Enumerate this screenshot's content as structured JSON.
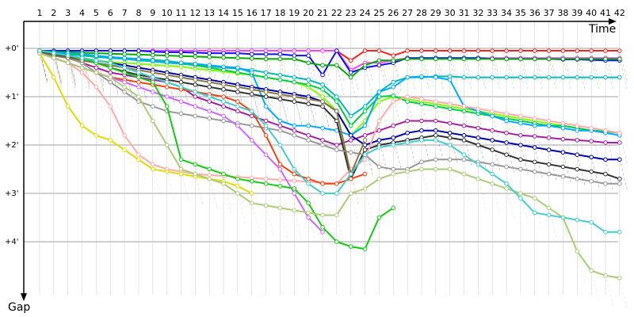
{
  "chart_data": {
    "type": "line",
    "xlabel": "Time",
    "ylabel": "Gap",
    "x_ticks": [
      "1",
      "2",
      "3",
      "4",
      "5",
      "6",
      "7",
      "8",
      "9",
      "10",
      "11",
      "12",
      "13",
      "14",
      "15",
      "16",
      "17",
      "18",
      "19",
      "20",
      "21",
      "22",
      "23",
      "24",
      "25",
      "26",
      "27",
      "28",
      "29",
      "30",
      "31",
      "32",
      "33",
      "34",
      "35",
      "36",
      "37",
      "38",
      "39",
      "40",
      "41",
      "42"
    ],
    "y_ticks": [
      "+0'",
      "+1'",
      "+2'",
      "+3'",
      "+4'"
    ],
    "ylim": [
      0,
      4.7
    ],
    "xlim": [
      1,
      42
    ],
    "grid": true,
    "series": [
      {
        "color": "#ff2020",
        "values": [
          0.05,
          0.05,
          0.05,
          0.05,
          0.05,
          0.05,
          0.05,
          0.05,
          0.05,
          0.05,
          0.05,
          0.05,
          0.05,
          0.05,
          0.05,
          0.05,
          0.05,
          0.05,
          0.05,
          0.05,
          0.05,
          0.05,
          0.25,
          0.05,
          0.05,
          0.15,
          0.05,
          0.05,
          0.05,
          0.05,
          0.05,
          0.05,
          0.05,
          0.05,
          0.05,
          0.05,
          0.05,
          0.05,
          0.05,
          0.05,
          0.05,
          0.05
        ]
      },
      {
        "color": "#ff44ff",
        "values": [
          0.05,
          0.05,
          0.05,
          0.05,
          0.05,
          0.05,
          0.05,
          0.05,
          0.05,
          0.05,
          0.05,
          0.05,
          0.05,
          0.05,
          0.05,
          0.05,
          0.05,
          0.05,
          0.05,
          0.05,
          0.05,
          0.05,
          0.45,
          0.3,
          0.3,
          0.25,
          0.2,
          0.2,
          0.2,
          0.2,
          0.2,
          0.2,
          0.2,
          0.2,
          0.2,
          0.2,
          0.2,
          0.2,
          0.2,
          0.2,
          0.2,
          0.2
        ]
      },
      {
        "color": "#1010ff",
        "values": [
          0.05,
          0.05,
          0.05,
          0.05,
          0.05,
          0.05,
          0.05,
          0.05,
          0.07,
          0.08,
          0.08,
          0.09,
          0.1,
          0.1,
          0.1,
          0.12,
          0.12,
          0.12,
          0.15,
          0.15,
          0.55,
          0.05,
          0.5,
          0.4,
          0.35,
          0.3,
          0.2,
          0.2,
          0.2,
          0.2,
          0.2,
          0.2,
          0.22,
          0.22,
          0.22,
          0.22,
          0.22,
          0.23,
          0.23,
          0.24,
          0.25,
          0.25
        ]
      },
      {
        "color": "#00aa00",
        "values": [
          0.05,
          0.07,
          0.08,
          0.09,
          0.1,
          0.11,
          0.12,
          0.13,
          0.14,
          0.15,
          0.16,
          0.17,
          0.18,
          0.19,
          0.2,
          0.21,
          0.22,
          0.22,
          0.22,
          0.3,
          0.35,
          0.35,
          0.6,
          0.35,
          0.25,
          0.25,
          0.22,
          0.22,
          0.22,
          0.22,
          0.22,
          0.22,
          0.22,
          0.22,
          0.22,
          0.22,
          0.22,
          0.22,
          0.22,
          0.22,
          0.22,
          0.22
        ]
      },
      {
        "color": "#00bbbb",
        "values": [
          0.08,
          0.1,
          0.12,
          0.15,
          0.18,
          0.2,
          0.22,
          0.25,
          0.27,
          0.3,
          0.32,
          0.35,
          0.37,
          0.4,
          0.42,
          0.45,
          0.5,
          0.55,
          0.6,
          0.65,
          0.75,
          1.0,
          1.4,
          1.2,
          0.9,
          0.7,
          0.6,
          0.6,
          0.58,
          0.58,
          0.6,
          0.6,
          0.6,
          0.6,
          0.6,
          0.6,
          0.6,
          0.6,
          0.6,
          0.6,
          0.6,
          0.6
        ]
      },
      {
        "color": "#80ff00",
        "values": [
          0.05,
          0.12,
          0.18,
          0.22,
          0.25,
          0.28,
          0.3,
          0.32,
          0.34,
          0.36,
          0.38,
          0.42,
          0.45,
          0.48,
          0.52,
          0.55,
          0.6,
          0.65,
          0.7,
          0.8,
          1.0,
          1.3,
          1.8,
          1.5,
          1.1,
          1.0,
          1.05,
          1.1,
          1.15,
          1.2,
          1.25,
          1.3,
          1.35,
          1.4,
          1.45,
          1.5,
          1.55,
          1.6,
          1.65,
          1.7,
          1.7,
          1.75
        ]
      },
      {
        "color": "#00cc44",
        "values": [
          0.05,
          0.1,
          0.12,
          0.14,
          0.16,
          0.18,
          0.2,
          0.22,
          0.24,
          0.26,
          0.3,
          0.35,
          0.4,
          0.45,
          0.5,
          0.55,
          0.6,
          0.65,
          0.7,
          0.75,
          0.85,
          1.1,
          1.6,
          1.3,
          1.0,
          0.98,
          1.1,
          1.15,
          1.2,
          1.25,
          1.3,
          1.35,
          1.4,
          1.45,
          1.5,
          1.55,
          1.6,
          1.6,
          1.65,
          1.7,
          1.72,
          1.75
        ]
      },
      {
        "color": "#00aaff",
        "values": [
          0.05,
          0.08,
          0.1,
          0.12,
          0.15,
          0.18,
          0.2,
          0.22,
          0.25,
          0.28,
          0.3,
          0.32,
          0.35,
          0.38,
          0.4,
          0.5,
          1.2,
          1.5,
          1.6,
          1.6,
          1.65,
          1.7,
          1.8,
          1.6,
          0.9,
          0.8,
          0.6,
          0.58,
          0.6,
          0.65,
          1.2,
          1.3,
          1.4,
          1.5,
          1.55,
          1.6,
          1.6,
          1.65,
          1.7,
          1.7,
          1.75,
          1.8
        ]
      },
      {
        "color": "#a020a0",
        "values": [
          0.05,
          0.15,
          0.2,
          0.3,
          0.4,
          0.5,
          0.55,
          0.6,
          0.65,
          0.7,
          0.8,
          1.0,
          1.1,
          1.2,
          1.3,
          1.4,
          1.5,
          1.6,
          1.7,
          1.8,
          1.9,
          2.0,
          1.9,
          1.8,
          1.7,
          1.6,
          1.5,
          1.5,
          1.5,
          1.55,
          1.6,
          1.65,
          1.7,
          1.75,
          1.8,
          1.82,
          1.85,
          1.88,
          1.9,
          1.92,
          1.95,
          1.95
        ]
      },
      {
        "color": "#0000aa",
        "values": [
          0.05,
          0.1,
          0.15,
          0.2,
          0.25,
          0.3,
          0.35,
          0.4,
          0.45,
          0.5,
          0.55,
          0.6,
          0.65,
          0.7,
          0.75,
          0.8,
          0.85,
          0.9,
          0.95,
          1.0,
          1.1,
          1.3,
          1.8,
          2.0,
          1.9,
          1.85,
          1.75,
          1.7,
          1.7,
          1.75,
          1.8,
          1.85,
          1.9,
          1.95,
          2.0,
          2.05,
          2.1,
          2.15,
          2.2,
          2.25,
          2.3,
          2.3
        ]
      },
      {
        "color": "#333333",
        "values": [
          0.08,
          0.12,
          0.18,
          0.25,
          0.3,
          0.4,
          0.48,
          0.55,
          0.6,
          0.65,
          0.7,
          0.75,
          0.8,
          0.85,
          0.9,
          0.95,
          1.0,
          1.05,
          1.1,
          1.15,
          1.2,
          1.5,
          2.7,
          2.1,
          2.0,
          1.95,
          1.9,
          1.85,
          1.8,
          1.85,
          1.9,
          2.0,
          2.1,
          2.2,
          2.3,
          2.35,
          2.4,
          2.45,
          2.5,
          2.55,
          2.6,
          2.7
        ]
      },
      {
        "color": "#999999",
        "values": [
          0.1,
          0.15,
          0.2,
          0.3,
          0.5,
          0.7,
          0.9,
          1.1,
          1.2,
          1.3,
          1.35,
          1.4,
          1.45,
          1.5,
          1.55,
          1.6,
          1.65,
          1.7,
          1.8,
          1.9,
          2.0,
          2.1,
          2.15,
          2.2,
          2.45,
          2.5,
          2.5,
          2.35,
          2.3,
          2.3,
          2.3,
          2.35,
          2.4,
          2.45,
          2.5,
          2.55,
          2.6,
          2.65,
          2.7,
          2.75,
          2.8,
          2.8
        ]
      },
      {
        "color": "#ffaaaa",
        "values": [
          0.1,
          0.2,
          0.3,
          0.5,
          0.8,
          1.2,
          1.8,
          2.2,
          2.4,
          2.5,
          2.55,
          2.6,
          2.62,
          2.64,
          2.66,
          2.68,
          2.7,
          2.72,
          2.74,
          2.76,
          2.78,
          2.8,
          2.5,
          2.3,
          1.5,
          1.1,
          1.0,
          1.05,
          1.1,
          1.15,
          1.2,
          1.25,
          1.3,
          1.35,
          1.4,
          1.45,
          1.5,
          1.55,
          1.6,
          1.65,
          1.7,
          1.75
        ]
      },
      {
        "color": "#dddd00",
        "values": [
          0.1,
          0.6,
          1.2,
          1.6,
          1.8,
          1.9,
          2.1,
          2.3,
          2.5,
          2.55,
          2.6,
          2.65,
          2.7,
          2.75,
          2.85,
          3.0
        ]
      },
      {
        "color": "#ee4411",
        "values": [
          0.1,
          0.2,
          0.3,
          0.4,
          0.5,
          0.6,
          0.65,
          0.7,
          0.75,
          0.8,
          0.85,
          0.9,
          0.95,
          1.0,
          1.1,
          1.3,
          1.8,
          2.4,
          2.6,
          2.7,
          2.8,
          2.8,
          2.7,
          2.6
        ]
      },
      {
        "color": "#887744",
        "values": [
          0.1,
          0.15,
          0.2,
          0.25,
          0.3,
          0.35,
          0.4,
          0.45,
          0.5,
          0.55,
          0.6,
          0.65,
          0.7,
          0.75,
          0.8,
          0.85,
          0.9,
          0.95,
          1.0,
          1.05,
          1.1,
          1.3,
          2.6,
          1.9
        ]
      },
      {
        "color": "#cc66ff",
        "values": [
          0.1,
          0.2,
          0.3,
          0.4,
          0.5,
          0.6,
          0.7,
          0.8,
          0.9,
          1.0,
          1.1,
          1.2,
          1.3,
          1.4,
          1.6,
          1.9,
          2.2,
          2.5,
          3.0,
          3.5,
          3.8
        ]
      },
      {
        "color": "#11cc11",
        "values": [
          0.05,
          0.1,
          0.15,
          0.2,
          0.3,
          0.4,
          0.5,
          0.6,
          0.7,
          1.2,
          2.3,
          2.4,
          2.5,
          2.6,
          2.7,
          2.75,
          2.8,
          2.85,
          2.9,
          3.2,
          3.7,
          4.0,
          4.1,
          4.15,
          3.5,
          3.3
        ]
      },
      {
        "color": "#aacc77",
        "values": [
          0.1,
          0.2,
          0.3,
          0.4,
          0.5,
          0.6,
          0.8,
          1.0,
          1.5,
          2.0,
          2.5,
          2.6,
          2.7,
          2.8,
          3.0,
          3.2,
          3.25,
          3.3,
          3.35,
          3.4,
          3.45,
          3.45,
          3.0,
          2.9,
          2.7,
          2.6,
          2.55,
          2.5,
          2.5,
          2.5,
          2.6,
          2.7,
          2.8,
          2.9,
          3.0,
          3.1,
          3.3,
          3.5,
          4.2,
          4.6,
          4.7,
          4.75
        ]
      },
      {
        "color": "#44cccc",
        "values": [
          0.05,
          0.1,
          0.15,
          0.2,
          0.25,
          0.3,
          0.4,
          0.5,
          0.6,
          0.7,
          0.8,
          0.9,
          1.0,
          1.1,
          1.2,
          1.3,
          1.6,
          2.0,
          2.5,
          2.8,
          3.0,
          3.0,
          2.6,
          2.2,
          2.05,
          2.0,
          1.95,
          1.9,
          1.9,
          2.0,
          2.2,
          2.4,
          2.6,
          2.8,
          3.1,
          3.4,
          3.45,
          3.5,
          3.55,
          3.6,
          3.8,
          3.8
        ]
      }
    ]
  }
}
